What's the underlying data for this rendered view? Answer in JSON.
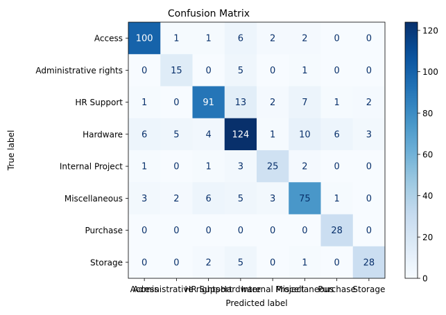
{
  "chart_data": {
    "type": "heatmap",
    "title": "Confusion Matrix",
    "xlabel": "Predicted label",
    "ylabel": "True label",
    "rows": [
      "Access",
      "Administrative rights",
      "HR Support",
      "Hardware",
      "Internal Project",
      "Miscellaneous",
      "Purchase",
      "Storage"
    ],
    "columns": [
      "Access",
      "Administrative rights",
      "HR Support",
      "Hardware",
      "Internal Project",
      "Miscellaneous",
      "Purchase",
      "Storage"
    ],
    "values": [
      [
        100,
        1,
        1,
        6,
        2,
        2,
        0,
        0
      ],
      [
        0,
        15,
        0,
        5,
        0,
        1,
        0,
        0
      ],
      [
        1,
        0,
        91,
        13,
        2,
        7,
        1,
        2
      ],
      [
        6,
        5,
        4,
        124,
        1,
        10,
        6,
        3
      ],
      [
        1,
        0,
        1,
        3,
        25,
        2,
        0,
        0
      ],
      [
        3,
        2,
        6,
        5,
        3,
        75,
        1,
        0
      ],
      [
        0,
        0,
        0,
        0,
        0,
        0,
        28,
        0
      ],
      [
        0,
        0,
        2,
        5,
        0,
        1,
        0,
        28
      ]
    ],
    "colormap": "Blues",
    "vmin": 0,
    "vmax": 124,
    "colorbar_ticks": [
      0,
      20,
      40,
      60,
      80,
      100,
      120
    ],
    "colorbar_tick_labels": [
      "0",
      "20",
      "40",
      "60",
      "80",
      "100",
      "120"
    ]
  }
}
